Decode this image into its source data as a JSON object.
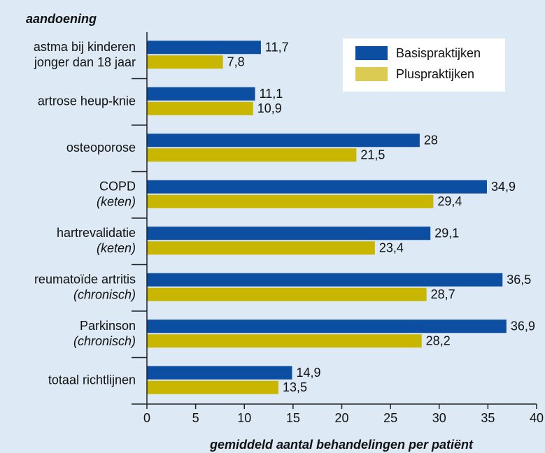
{
  "chart_data": {
    "type": "bar",
    "orientation": "horizontal",
    "title": "aandoening",
    "xlabel": "gemiddeld aantal behandelingen per patiënt",
    "categories": [
      [
        "astma bij kinderen",
        "jonger dan 18 jaar"
      ],
      [
        "artrose heup-knie"
      ],
      [
        "osteoporose"
      ],
      [
        "COPD"
      ],
      [
        "hartrevalidatie"
      ],
      [
        "reumatoïde artritis"
      ],
      [
        "Parkinson"
      ],
      [
        "totaal richtlijnen"
      ]
    ],
    "category_notes": [
      null,
      null,
      null,
      "(keten)",
      "(keten)",
      "(chronisch)",
      "(chronisch)",
      null
    ],
    "series": [
      {
        "name": "Basispraktijken",
        "color": "#0b4ea2",
        "values": [
          11.7,
          11.1,
          28,
          34.9,
          29.1,
          36.5,
          36.9,
          14.9
        ],
        "value_labels": [
          "11,7",
          "11,1",
          "28",
          "34,9",
          "29,1",
          "36,5",
          "36,9",
          "14,9"
        ]
      },
      {
        "name": "Pluspraktijken",
        "color": "#c8b600",
        "values": [
          7.8,
          10.9,
          21.5,
          29.4,
          23.4,
          28.7,
          28.2,
          13.5
        ],
        "value_labels": [
          "7,8",
          "10,9",
          "21,5",
          "29,4",
          "23,4",
          "28,7",
          "28,2",
          "13,5"
        ]
      }
    ],
    "xlim": [
      0,
      40
    ],
    "xticks": [
      0,
      5,
      10,
      15,
      20,
      25,
      30,
      35,
      40
    ],
    "legend": "top-right",
    "legend_marker_colors": [
      "#0b4ea2",
      "#dccb52"
    ]
  }
}
